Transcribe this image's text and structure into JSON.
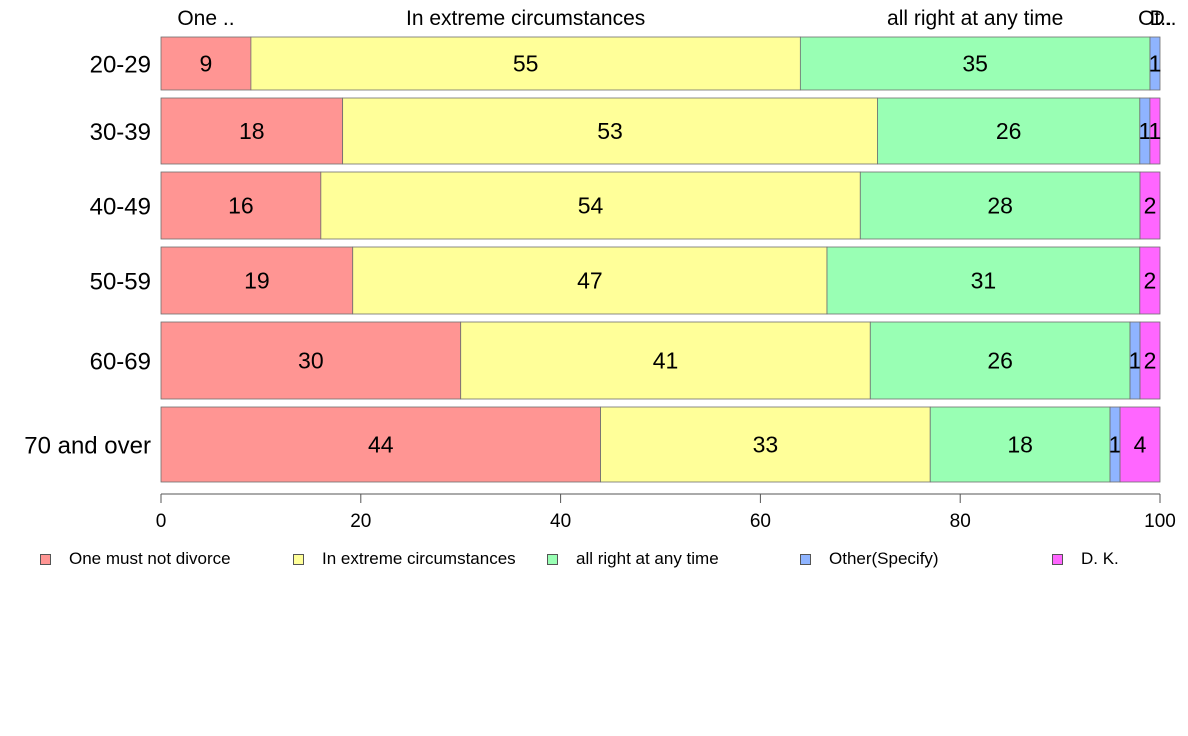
{
  "chart_data": {
    "type": "bar",
    "orientation": "horizontal",
    "stacked": true,
    "categories": [
      "20-29",
      "30-39",
      "40-49",
      "50-59",
      "60-69",
      "70 and over"
    ],
    "series": [
      {
        "name": "One must not divorce",
        "color": "#FF9593",
        "values": [
          9,
          18,
          16,
          19,
          30,
          44
        ],
        "labels": [
          "9",
          "18",
          "16",
          "19",
          "30",
          "44"
        ]
      },
      {
        "name": "In extreme circumstances",
        "color": "#FFFF99",
        "values": [
          55,
          53,
          54,
          47,
          41,
          33
        ],
        "labels": [
          "55",
          "53",
          "54",
          "47",
          "41",
          "33"
        ]
      },
      {
        "name": "all right at any time",
        "color": "#99FFB4",
        "values": [
          35,
          26,
          28,
          31,
          26,
          18
        ],
        "labels": [
          "35",
          "26",
          "28",
          "31",
          "26",
          "18"
        ]
      },
      {
        "name": "Other(Specify)",
        "color": "#8FB4FF",
        "values": [
          1,
          1,
          0,
          0,
          1,
          1
        ],
        "labels": [
          "1",
          "1",
          "",
          "",
          "1",
          "1"
        ]
      },
      {
        "name": "D. K.",
        "color": "#FF66FF",
        "values": [
          0,
          1,
          2,
          2,
          2,
          4
        ],
        "labels": [
          "",
          "1",
          "2",
          "2",
          "2",
          "4"
        ]
      }
    ],
    "top_labels": [
      "One ..",
      "In extreme circumstances",
      "all right at any time",
      "Ot..",
      "D.."
    ],
    "xlim": [
      0,
      100
    ],
    "xticks": [
      "0",
      "20",
      "40",
      "60",
      "80",
      "100"
    ],
    "grid": false,
    "legend_position": "bottom"
  }
}
